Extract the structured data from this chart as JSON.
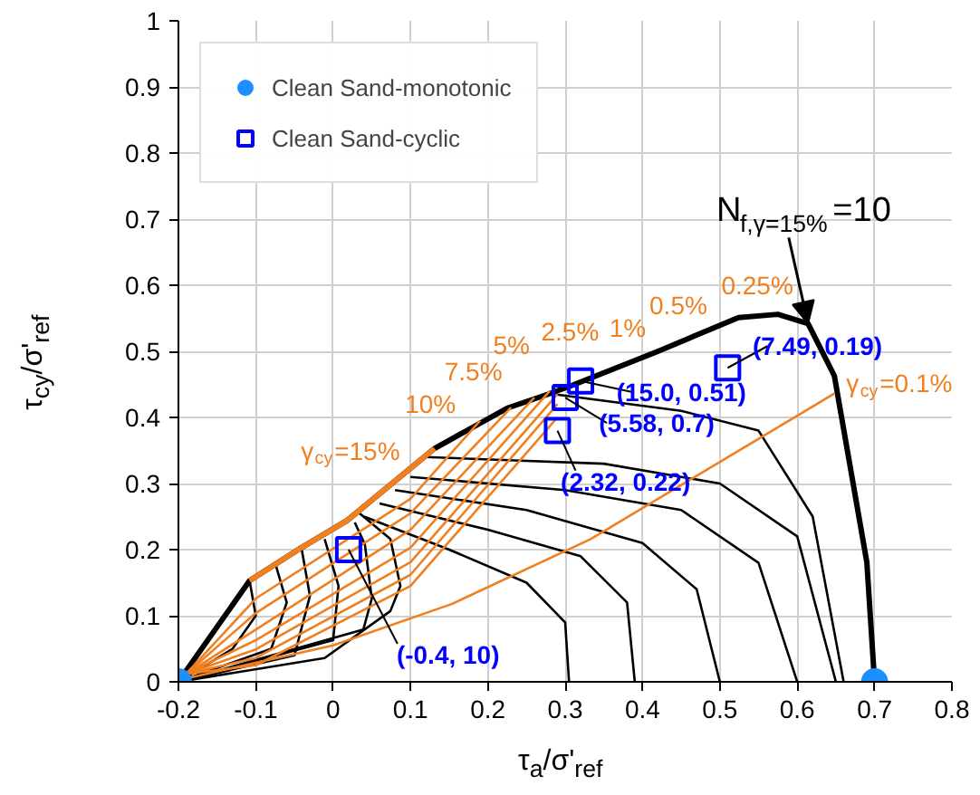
{
  "chart_data": {
    "type": "line",
    "xlabel": "τ$_{a}$/σ'$_{ref}$",
    "ylabel": "τ$_{cy}$/σ'$_{ref}$",
    "xlim": [
      -0.2,
      0.8
    ],
    "ylim": [
      0,
      1
    ],
    "xticks": [
      -0.2,
      -0.1,
      0,
      0.1,
      0.2,
      0.3,
      0.4,
      0.5,
      0.6,
      0.7,
      0.8
    ],
    "yticks": [
      0,
      0.1,
      0.2,
      0.3,
      0.4,
      0.5,
      0.6,
      0.7,
      0.8,
      0.9,
      1
    ],
    "grid": true,
    "legend": "top left",
    "series": [
      {
        "color": "#000000",
        "x": [
          -0.2,
          -0.108,
          -0.041,
          0.018,
          0.131,
          0.225,
          0.28,
          0.31,
          0.42,
          0.524,
          0.575,
          0.614,
          0.648,
          0.69,
          0.7
        ],
        "values": [
          0,
          0.153,
          0.203,
          0.244,
          0.353,
          0.414,
          0.436,
          0.449,
          0.5,
          0.551,
          0.556,
          0.542,
          0.463,
          0.181,
          0
        ]
      },
      {
        "type": "line",
        "color": "#000000",
        "x": [
          -0.108,
          -0.1,
          -0.13,
          -0.2
        ],
        "values": [
          0.153,
          0.1,
          0.05,
          0
        ]
      },
      {
        "type": "line",
        "color": "#000000",
        "x": [
          -0.075,
          -0.06,
          -0.08,
          -0.2
        ],
        "values": [
          0.18,
          0.12,
          0.05,
          0
        ]
      },
      {
        "type": "line",
        "color": "#000000",
        "x": [
          -0.041,
          -0.03,
          -0.05,
          -0.2
        ],
        "values": [
          0.203,
          0.13,
          0.04,
          0
        ]
      },
      {
        "type": "line",
        "color": "#000000",
        "x": [
          -0.011,
          0.007,
          0,
          -0.2
        ],
        "values": [
          0.216,
          0.145,
          0.063,
          0
        ]
      },
      {
        "type": "line",
        "color": "#000000",
        "x": [
          0.028,
          0.041,
          0.05,
          0.039,
          -0.2
        ],
        "values": [
          0.241,
          0.208,
          0.126,
          0.079,
          0
        ]
      },
      {
        "type": "line",
        "color": "#000000",
        "x": [
          0.034,
          0.074,
          0.087,
          0.074,
          -0.011,
          -0.2
        ],
        "values": [
          0.255,
          0.216,
          0.145,
          0.107,
          0.036,
          0
        ]
      },
      {
        "type": "line",
        "color": "#000000",
        "x": [
          0.04,
          0.15,
          0.25,
          0.3,
          0.305
        ],
        "values": [
          0.25,
          0.2,
          0.15,
          0.09,
          0
        ]
      },
      {
        "type": "line",
        "color": "#000000",
        "x": [
          0.06,
          0.2,
          0.32,
          0.38,
          0.39
        ],
        "values": [
          0.27,
          0.23,
          0.19,
          0.12,
          0
        ]
      },
      {
        "type": "line",
        "color": "#000000",
        "x": [
          0.08,
          0.25,
          0.4,
          0.47,
          0.5
        ],
        "values": [
          0.29,
          0.26,
          0.21,
          0.14,
          0
        ]
      },
      {
        "type": "line",
        "color": "#000000",
        "x": [
          0.1,
          0.3,
          0.45,
          0.55,
          0.6
        ],
        "values": [
          0.31,
          0.29,
          0.26,
          0.18,
          0
        ]
      },
      {
        "type": "line",
        "color": "#000000",
        "x": [
          0.12,
          0.35,
          0.5,
          0.6,
          0.65
        ],
        "values": [
          0.34,
          0.33,
          0.3,
          0.22,
          0
        ]
      },
      {
        "type": "line",
        "color": "#000000",
        "x": [
          0.28,
          0.45,
          0.55,
          0.62,
          0.66
        ],
        "values": [
          0.436,
          0.41,
          0.38,
          0.25,
          0
        ]
      },
      {
        "type": "line",
        "color": "#f07f1f",
        "x": [
          -0.108,
          -0.041,
          0.018,
          0.131
        ],
        "values": [
          0.153,
          0.203,
          0.244,
          0.353
        ]
      },
      {
        "type": "line",
        "color": "#f07f1f",
        "x": [
          -0.19,
          -0.1,
          0.1,
          0.19
        ],
        "values": [
          0.012,
          0.126,
          0.277,
          0.395
        ]
      },
      {
        "type": "line",
        "color": "#f07f1f",
        "x": [
          -0.19,
          -0.1,
          0.1,
          0.23
        ],
        "values": [
          0.012,
          0.104,
          0.255,
          0.415
        ]
      },
      {
        "type": "line",
        "color": "#f07f1f",
        "x": [
          -0.19,
          -0.1,
          0.1,
          0.26
        ],
        "values": [
          0.012,
          0.079,
          0.23,
          0.43
        ]
      },
      {
        "type": "line",
        "color": "#f07f1f",
        "x": [
          -0.19,
          -0.1,
          0.1,
          0.28
        ],
        "values": [
          0.012,
          0.063,
          0.203,
          0.44
        ]
      },
      {
        "type": "line",
        "color": "#f07f1f",
        "x": [
          -0.19,
          -0.1,
          0.1,
          0.29
        ],
        "values": [
          0.012,
          0.049,
          0.181,
          0.435
        ]
      },
      {
        "type": "line",
        "color": "#f07f1f",
        "x": [
          -0.19,
          -0.1,
          0.1,
          0.29
        ],
        "values": [
          0.012,
          0.036,
          0.162,
          0.42
        ]
      },
      {
        "type": "line",
        "color": "#f07f1f",
        "x": [
          -0.19,
          -0.1,
          0.1,
          0.29
        ],
        "values": [
          0.012,
          0.025,
          0.145,
          0.4
        ]
      },
      {
        "type": "line",
        "color": "#f07f1f",
        "x": [
          -0.19,
          0.0,
          0.154,
          0.333,
          0.648
        ],
        "values": [
          0.005,
          0.055,
          0.118,
          0.216,
          0.436
        ]
      },
      {
        "type": "scatter",
        "marker": "circle",
        "name": "Clean Sand-monotonic",
        "color": "#1e8fff",
        "x": [
          -0.2,
          0.7
        ],
        "values": [
          0,
          0
        ]
      },
      {
        "type": "scatter",
        "marker": "square",
        "name": "Clean Sand-cyclic",
        "color": "#0000ff",
        "x": [
          0.02,
          0.29,
          0.3,
          0.32,
          0.51
        ],
        "values": [
          0.2,
          0.38,
          0.43,
          0.455,
          0.475
        ],
        "value_labels": [
          "(-0.4, 10)",
          "(2.32, 0.22)",
          "(5.58, 0.7)",
          "(15.0, 0.51)",
          "(7.49, 0.19)"
        ]
      }
    ],
    "annotations": [
      "γ$_{cy}$=15%",
      "10%",
      "7.5%",
      "5%",
      "2.5%",
      "1%",
      "0.5%",
      "0.25%",
      "γ$_{cy}$=0.1%",
      {
        "text": "N$_{f,γ=15%}$=10",
        "x": 0.614,
        "y": 0.542
      }
    ]
  }
}
